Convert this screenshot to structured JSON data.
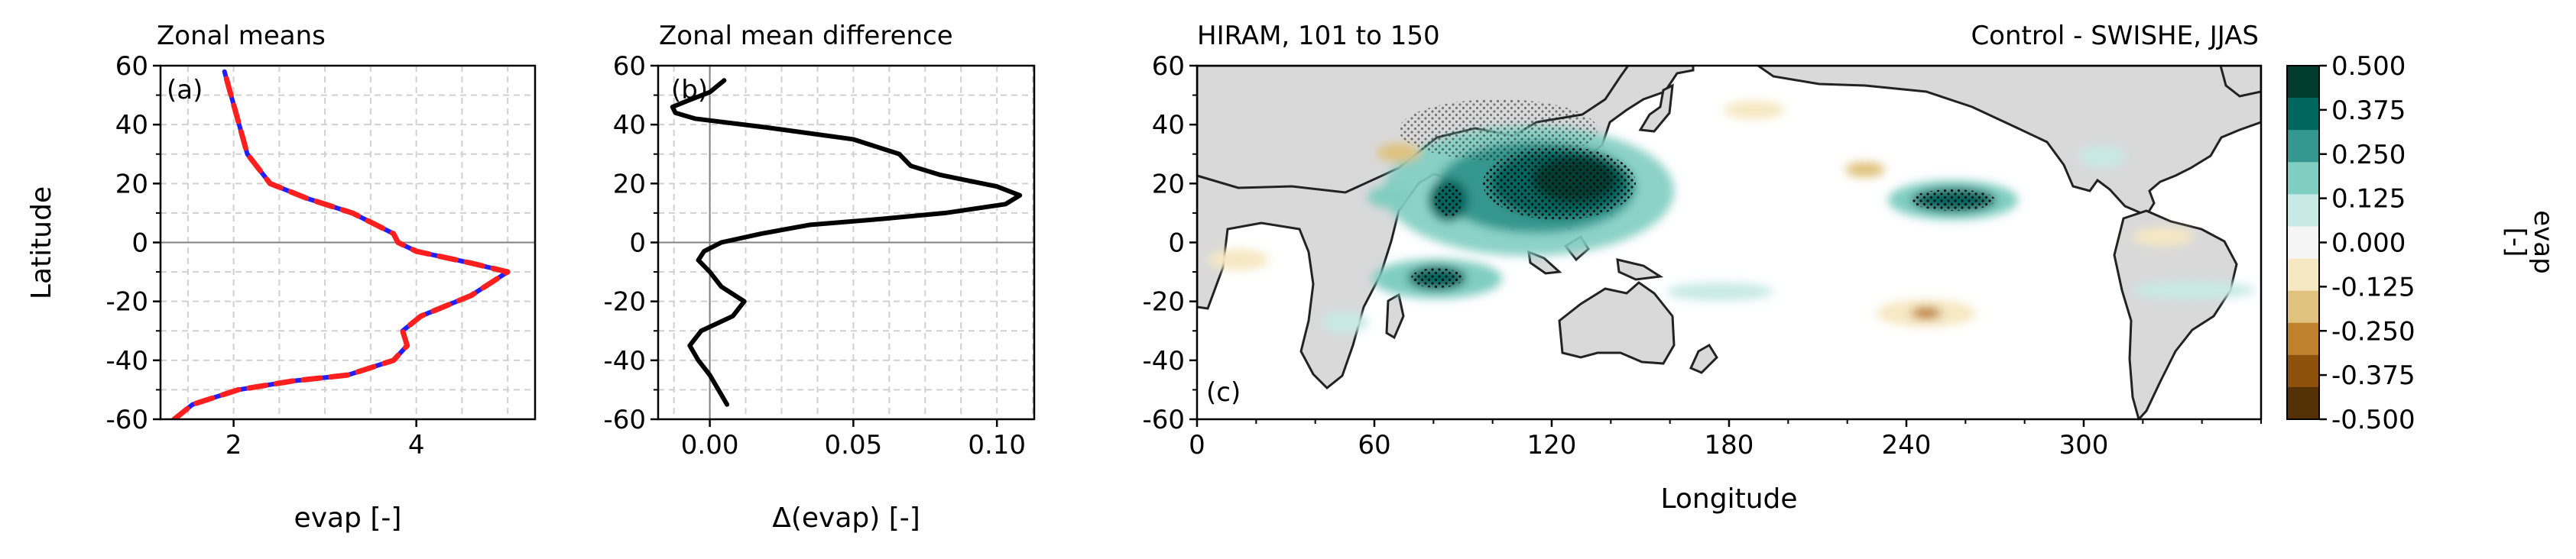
{
  "chart_data": [
    {
      "type": "line",
      "title": "Zonal means",
      "panel_label": "(a)",
      "xlabel": "evap [-]",
      "ylabel": "Latitude",
      "xlim": [
        1.2,
        5.3
      ],
      "ylim": [
        -60,
        60
      ],
      "xticks": [
        2,
        4
      ],
      "yticks": [
        -60,
        -40,
        -20,
        0,
        20,
        40,
        60
      ],
      "grid": true,
      "series": [
        {
          "color": "#1f1fff",
          "style": "solid",
          "x": [
            1.35,
            1.55,
            2.05,
            2.65,
            3.25,
            3.75,
            3.9,
            3.85,
            4.05,
            4.6,
            4.85,
            5.0,
            4.6,
            4.0,
            3.8,
            3.75,
            3.3,
            2.8,
            2.4,
            2.15,
            1.9
          ],
          "y": [
            -60,
            -55,
            -50,
            -47,
            -45,
            -40,
            -35,
            -30,
            -25,
            -18,
            -13,
            -10,
            -7,
            -3,
            0,
            3,
            10,
            15,
            20,
            30,
            58
          ]
        },
        {
          "color": "#ff1f1f",
          "style": "dashed",
          "x": [
            1.35,
            1.55,
            2.05,
            2.65,
            3.25,
            3.75,
            3.9,
            3.85,
            4.05,
            4.6,
            4.85,
            5.0,
            4.6,
            4.0,
            3.8,
            3.75,
            3.3,
            2.8,
            2.4,
            2.15,
            1.9
          ],
          "y": [
            -60,
            -55,
            -50,
            -47,
            -45,
            -40,
            -35,
            -30,
            -25,
            -18,
            -13,
            -10,
            -7,
            -3,
            0,
            3,
            10,
            15,
            20,
            30,
            58
          ]
        }
      ]
    },
    {
      "type": "line",
      "title": "Zonal mean difference",
      "panel_label": "(b)",
      "xlabel": "Δ(evap) [-]",
      "xlim": [
        -0.018,
        0.113
      ],
      "ylim": [
        -60,
        60
      ],
      "xticks": [
        "0.00",
        "0.05",
        "0.10"
      ],
      "yticks": [
        -60,
        -40,
        -20,
        0,
        20,
        40,
        60
      ],
      "grid": true,
      "series": [
        {
          "color": "#000000",
          "x": [
            0.006,
            0.003,
            0.0,
            -0.004,
            -0.007,
            -0.003,
            0.008,
            0.012,
            0.004,
            0.0,
            -0.004,
            -0.002,
            0.004,
            0.018,
            0.035,
            0.06,
            0.082,
            0.103,
            0.108,
            0.1,
            0.08,
            0.07,
            0.066,
            0.05,
            0.02,
            -0.005,
            -0.012,
            -0.013,
            -0.008,
            0.0,
            0.005
          ],
          "y": [
            -55,
            -50,
            -45,
            -40,
            -35,
            -30,
            -25,
            -20,
            -15,
            -10,
            -6,
            -3,
            0,
            3,
            6,
            8,
            10,
            13,
            16,
            19,
            23,
            26,
            30,
            35,
            39,
            42,
            44,
            46,
            48,
            51,
            55
          ]
        }
      ]
    },
    {
      "type": "heatmap",
      "title_left": "HIRAM, 101 to 150",
      "title_right": "Control - SWISHE, JJAS",
      "panel_label": "(c)",
      "xlabel": "Longitude",
      "xlim": [
        0,
        360
      ],
      "ylim": [
        -60,
        60
      ],
      "xticks": [
        0,
        60,
        120,
        180,
        240,
        300
      ],
      "yticks": [
        -60,
        -40,
        -20,
        0,
        20,
        40,
        60
      ],
      "colorbar": {
        "label": "evap\n[-]",
        "ticks": [
          "0.500",
          "0.375",
          "0.250",
          "0.125",
          "0.000",
          "-0.125",
          "-0.250",
          "-0.375",
          "-0.500"
        ],
        "colors": [
          "#003c30",
          "#01665e",
          "#35978f",
          "#80cdc1",
          "#c7eae5",
          "#f5f5f5",
          "#f6e8c3",
          "#dfc27d",
          "#bf812d",
          "#8c510a",
          "#543005"
        ]
      },
      "anomalies": [
        {
          "lon": 132,
          "lat": 22,
          "value": 0.5
        },
        {
          "lon": 90,
          "lat": 14,
          "value": 0.5
        },
        {
          "lon": 260,
          "lat": 15,
          "value": 0.4
        },
        {
          "lon": 86,
          "lat": -12,
          "value": 0.35
        },
        {
          "lon": 230,
          "lat": -25,
          "value": -0.3
        },
        {
          "lon": 80,
          "lat": 24,
          "value": -0.2
        }
      ]
    }
  ]
}
